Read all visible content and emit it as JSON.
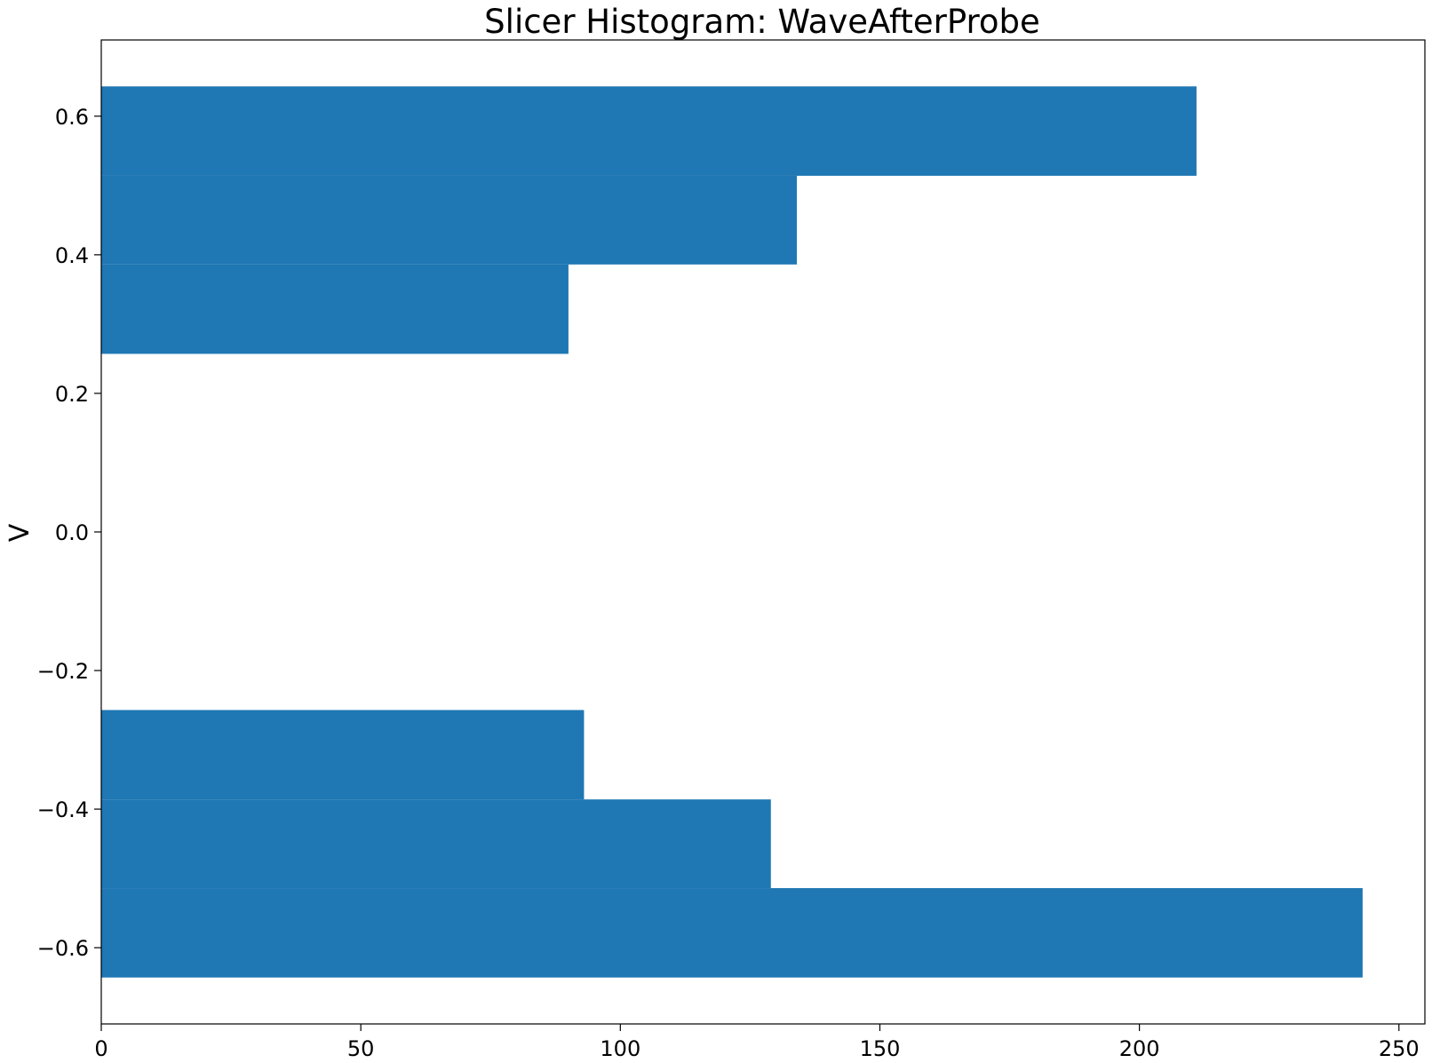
{
  "chart_data": {
    "type": "bar",
    "orientation": "horizontal",
    "title": "Slicer Histogram: WaveAfterProbe",
    "xlabel": "",
    "ylabel": "V",
    "xlim": [
      0,
      255
    ],
    "ylim": [
      -0.71,
      0.71
    ],
    "bar_color": "#1f77b4",
    "grid": false,
    "bins": [
      {
        "y_start": -0.643,
        "y_end": -0.514,
        "value": 243
      },
      {
        "y_start": -0.514,
        "y_end": -0.386,
        "value": 129
      },
      {
        "y_start": -0.386,
        "y_end": -0.257,
        "value": 93
      },
      {
        "y_start": -0.257,
        "y_end": -0.129,
        "value": 0
      },
      {
        "y_start": -0.129,
        "y_end": 0.0,
        "value": 0
      },
      {
        "y_start": 0.0,
        "y_end": 0.129,
        "value": 0
      },
      {
        "y_start": 0.129,
        "y_end": 0.257,
        "value": 0
      },
      {
        "y_start": 0.257,
        "y_end": 0.386,
        "value": 90
      },
      {
        "y_start": 0.386,
        "y_end": 0.514,
        "value": 134
      },
      {
        "y_start": 0.514,
        "y_end": 0.643,
        "value": 211
      }
    ],
    "x_ticks": [
      {
        "value": 0,
        "label": "0"
      },
      {
        "value": 50,
        "label": "50"
      },
      {
        "value": 100,
        "label": "100"
      },
      {
        "value": 150,
        "label": "150"
      },
      {
        "value": 200,
        "label": "200"
      },
      {
        "value": 250,
        "label": "250"
      }
    ],
    "y_ticks": [
      {
        "value": -0.6,
        "label": "−0.6"
      },
      {
        "value": -0.4,
        "label": "−0.4"
      },
      {
        "value": -0.2,
        "label": "−0.2"
      },
      {
        "value": 0.0,
        "label": "0.0"
      },
      {
        "value": 0.2,
        "label": "0.2"
      },
      {
        "value": 0.4,
        "label": "0.4"
      },
      {
        "value": 0.6,
        "label": "0.6"
      }
    ]
  }
}
